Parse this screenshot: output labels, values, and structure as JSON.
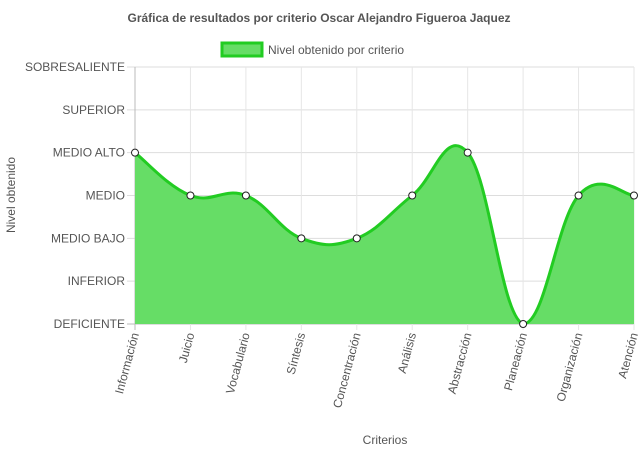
{
  "chart_data": {
    "type": "area",
    "title": "Gráfica de resultados por criterio Oscar Alejandro Figueroa Jaquez",
    "xlabel": "Criterios",
    "ylabel": "Nivel obtenido",
    "categories": [
      "Información",
      "Juicio",
      "Vocabulario",
      "Síntesis",
      "Concentración",
      "Análisis",
      "Abstracción",
      "Planeación",
      "Organización",
      "Atención"
    ],
    "y_levels": [
      "DEFICIENTE",
      "INFERIOR",
      "MEDIO BAJO",
      "MEDIO",
      "MEDIO ALTO",
      "SUPERIOR",
      "SOBRESALIENTE"
    ],
    "ylim": [
      0,
      6
    ],
    "series": [
      {
        "name": "Nivel obtenido por criterio",
        "values": [
          4,
          3,
          3,
          2,
          2,
          3,
          4,
          0,
          3,
          3
        ],
        "fill_color": "#66dd66",
        "line_color": "#22cc22"
      }
    ],
    "legend_position": "top",
    "grid": true
  }
}
